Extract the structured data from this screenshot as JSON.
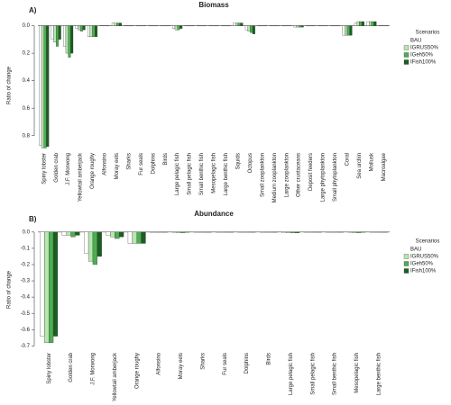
{
  "chart_data": [
    {
      "type": "bar",
      "title": "Biomass",
      "panel_label": "A)",
      "y_label": "Ratio of change",
      "legend_title": "Scenarios",
      "legend_position": "right",
      "y_inverted": true,
      "ylim": [
        -0.03,
        0.9
      ],
      "yticks": [
        {
          "value": 0,
          "label": "0.0"
        },
        {
          "value": 0.2,
          "label": "0.2"
        },
        {
          "value": 0.4,
          "label": "0.4"
        },
        {
          "value": 0.6,
          "label": "0.6"
        },
        {
          "value": 0.8,
          "label": "0.8"
        }
      ],
      "categories": [
        "Spiny lobster",
        "Golden crab",
        "J.F. Morwong",
        "Yellowtail amberjack",
        "Orange roughy",
        "Alfonsino",
        "Moray eels",
        "Sharks",
        "Fur seals",
        "Dolphins",
        "Birds",
        "Large pelagic fish",
        "Small pelagic fish",
        "Small benthic fish",
        "Mesopelagic fish",
        "Large benthic fish",
        "Squids",
        "Octopus",
        "Small zooplankton",
        "Medium zooplankton",
        "Large zooplankton",
        "Other crustaceans",
        "Deposit feeders",
        "Large phytoplankton",
        "Small phytoplankton",
        "Coral",
        "Sea urchin",
        "Mollusk",
        "Macroalgae"
      ],
      "series": [
        {
          "name": "BAU",
          "color": "#ffffff",
          "values": [
            0.87,
            0.1,
            0.15,
            0.02,
            0.08,
            0,
            -0.02,
            0,
            0,
            0,
            0,
            0.02,
            0,
            0,
            0,
            0,
            -0.02,
            0.03,
            0,
            0,
            0,
            0.01,
            0,
            0,
            0,
            0.07,
            -0.02,
            -0.03,
            0
          ]
        },
        {
          "name": "IGRUS50%",
          "color": "#b8e6b0",
          "values": [
            0.89,
            0.12,
            0.2,
            0.03,
            0.08,
            0,
            -0.02,
            0,
            0,
            0,
            0,
            0.03,
            0,
            0,
            0,
            0,
            -0.02,
            0.04,
            0,
            0,
            0,
            0.01,
            0,
            0,
            0,
            0.07,
            -0.03,
            -0.03,
            0
          ]
        },
        {
          "name": "IGeh50%",
          "color": "#4caf50",
          "values": [
            0.89,
            0.15,
            0.23,
            0.04,
            0.08,
            0,
            -0.02,
            0,
            0,
            0,
            0,
            0.03,
            0,
            0,
            0,
            0,
            -0.02,
            0.05,
            0,
            0,
            0,
            0.01,
            0,
            0,
            0,
            0.07,
            -0.03,
            -0.03,
            0
          ]
        },
        {
          "name": "IFish100%",
          "color": "#1b5e20",
          "values": [
            0.88,
            0.1,
            0.2,
            0.03,
            0.08,
            0,
            -0.02,
            0,
            0,
            0,
            0,
            0.02,
            0,
            0,
            0,
            0,
            -0.02,
            0.06,
            0,
            0,
            0,
            0.01,
            0,
            0,
            0,
            0.07,
            -0.03,
            -0.03,
            0
          ]
        }
      ]
    },
    {
      "type": "bar",
      "title": "Abundance",
      "panel_label": "B)",
      "y_label": "Ratio of change",
      "legend_title": "Scenarios",
      "legend_position": "right",
      "y_inverted": false,
      "ylim": [
        -0.72,
        0.01
      ],
      "yticks": [
        {
          "value": 0,
          "label": "0.0"
        },
        -0.1,
        -0.2,
        -0.3,
        -0.4,
        -0.5,
        -0.6,
        -0.7
      ],
      "categories": [
        "Spiny lobster",
        "Golden crab",
        "J.F. Morwong",
        "Yellowtail amberjack",
        "Orange roughy",
        "Alfonsino",
        "Moray eels",
        "Sharks",
        "Fur seals",
        "Dolphins",
        "Birds",
        "Large pelagic fish",
        "Small pelagic fish",
        "Small benthic fish",
        "Mesopelagic fish",
        "Large benthic fish"
      ],
      "series": [
        {
          "name": "BAU",
          "color": "#ffffff",
          "values": [
            -0.64,
            -0.02,
            -0.13,
            -0.02,
            -0.07,
            0,
            0,
            0,
            0,
            0,
            0,
            -0.005,
            0,
            0,
            0,
            0
          ]
        },
        {
          "name": "IGRUS50%",
          "color": "#b8e6b0",
          "values": [
            -0.68,
            -0.02,
            -0.18,
            -0.03,
            -0.07,
            0,
            -0.005,
            0,
            0,
            0,
            0,
            -0.005,
            0,
            0,
            -0.005,
            0
          ]
        },
        {
          "name": "IGeh50%",
          "color": "#4caf50",
          "values": [
            -0.68,
            -0.03,
            -0.2,
            -0.04,
            -0.07,
            0,
            -0.005,
            0,
            0,
            0,
            0,
            -0.005,
            0,
            0,
            -0.005,
            0
          ]
        },
        {
          "name": "IFish100%",
          "color": "#1b5e20",
          "values": [
            -0.64,
            -0.02,
            -0.15,
            -0.03,
            -0.07,
            0,
            0,
            0,
            0,
            0,
            0,
            -0.005,
            0,
            0,
            0,
            0
          ]
        }
      ]
    }
  ]
}
